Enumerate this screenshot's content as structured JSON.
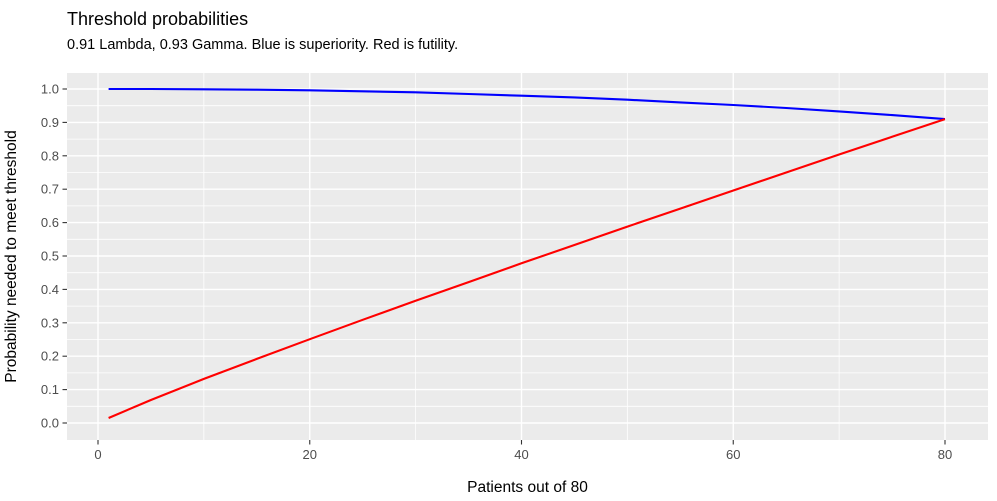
{
  "colors": {
    "panel_bg": "#EBEBEB",
    "grid": "#FFFFFF",
    "superiority": "#0000FF",
    "futility": "#FF0000",
    "axis_text": "#4D4D4D",
    "tick_mark": "#333333",
    "title_text": "#000000"
  },
  "chart_data": {
    "type": "line",
    "title": "Threshold probabilities",
    "subtitle": "0.91 Lambda, 0.93 Gamma. Blue is superiority. Red is futility.",
    "xlabel": "Patients out of 80",
    "ylabel": "Probability needed to meet threshold",
    "params": {
      "lambda": 0.91,
      "gamma": 0.93,
      "n_max": 80
    },
    "xlim": [
      0,
      80
    ],
    "ylim": [
      0.0,
      1.0
    ],
    "x_ticks": [
      0,
      20,
      40,
      60,
      80
    ],
    "x_minor_ticks": [
      10,
      30,
      50,
      70
    ],
    "y_ticks": [
      0.0,
      0.1,
      0.2,
      0.3,
      0.4,
      0.5,
      0.6,
      0.7,
      0.8,
      0.9,
      1.0
    ],
    "y_minor_ticks": [
      0.05,
      0.15,
      0.25,
      0.35,
      0.45,
      0.55,
      0.65,
      0.75,
      0.85,
      0.95
    ],
    "grid": true,
    "legend_position": "none",
    "x": [
      1,
      5,
      10,
      15,
      20,
      25,
      30,
      35,
      40,
      45,
      50,
      55,
      60,
      65,
      70,
      75,
      80
    ],
    "series": [
      {
        "name": "superiority",
        "color_key": "superiority",
        "values": [
          1.0,
          1.0,
          0.999,
          0.998,
          0.996,
          0.993,
          0.99,
          0.985,
          0.98,
          0.975,
          0.968,
          0.96,
          0.952,
          0.943,
          0.933,
          0.922,
          0.91
        ]
      },
      {
        "name": "futility",
        "color_key": "futility",
        "values": [
          0.015,
          0.069,
          0.132,
          0.192,
          0.251,
          0.309,
          0.366,
          0.422,
          0.478,
          0.533,
          0.588,
          0.642,
          0.696,
          0.75,
          0.804,
          0.857,
          0.91
        ]
      }
    ]
  }
}
